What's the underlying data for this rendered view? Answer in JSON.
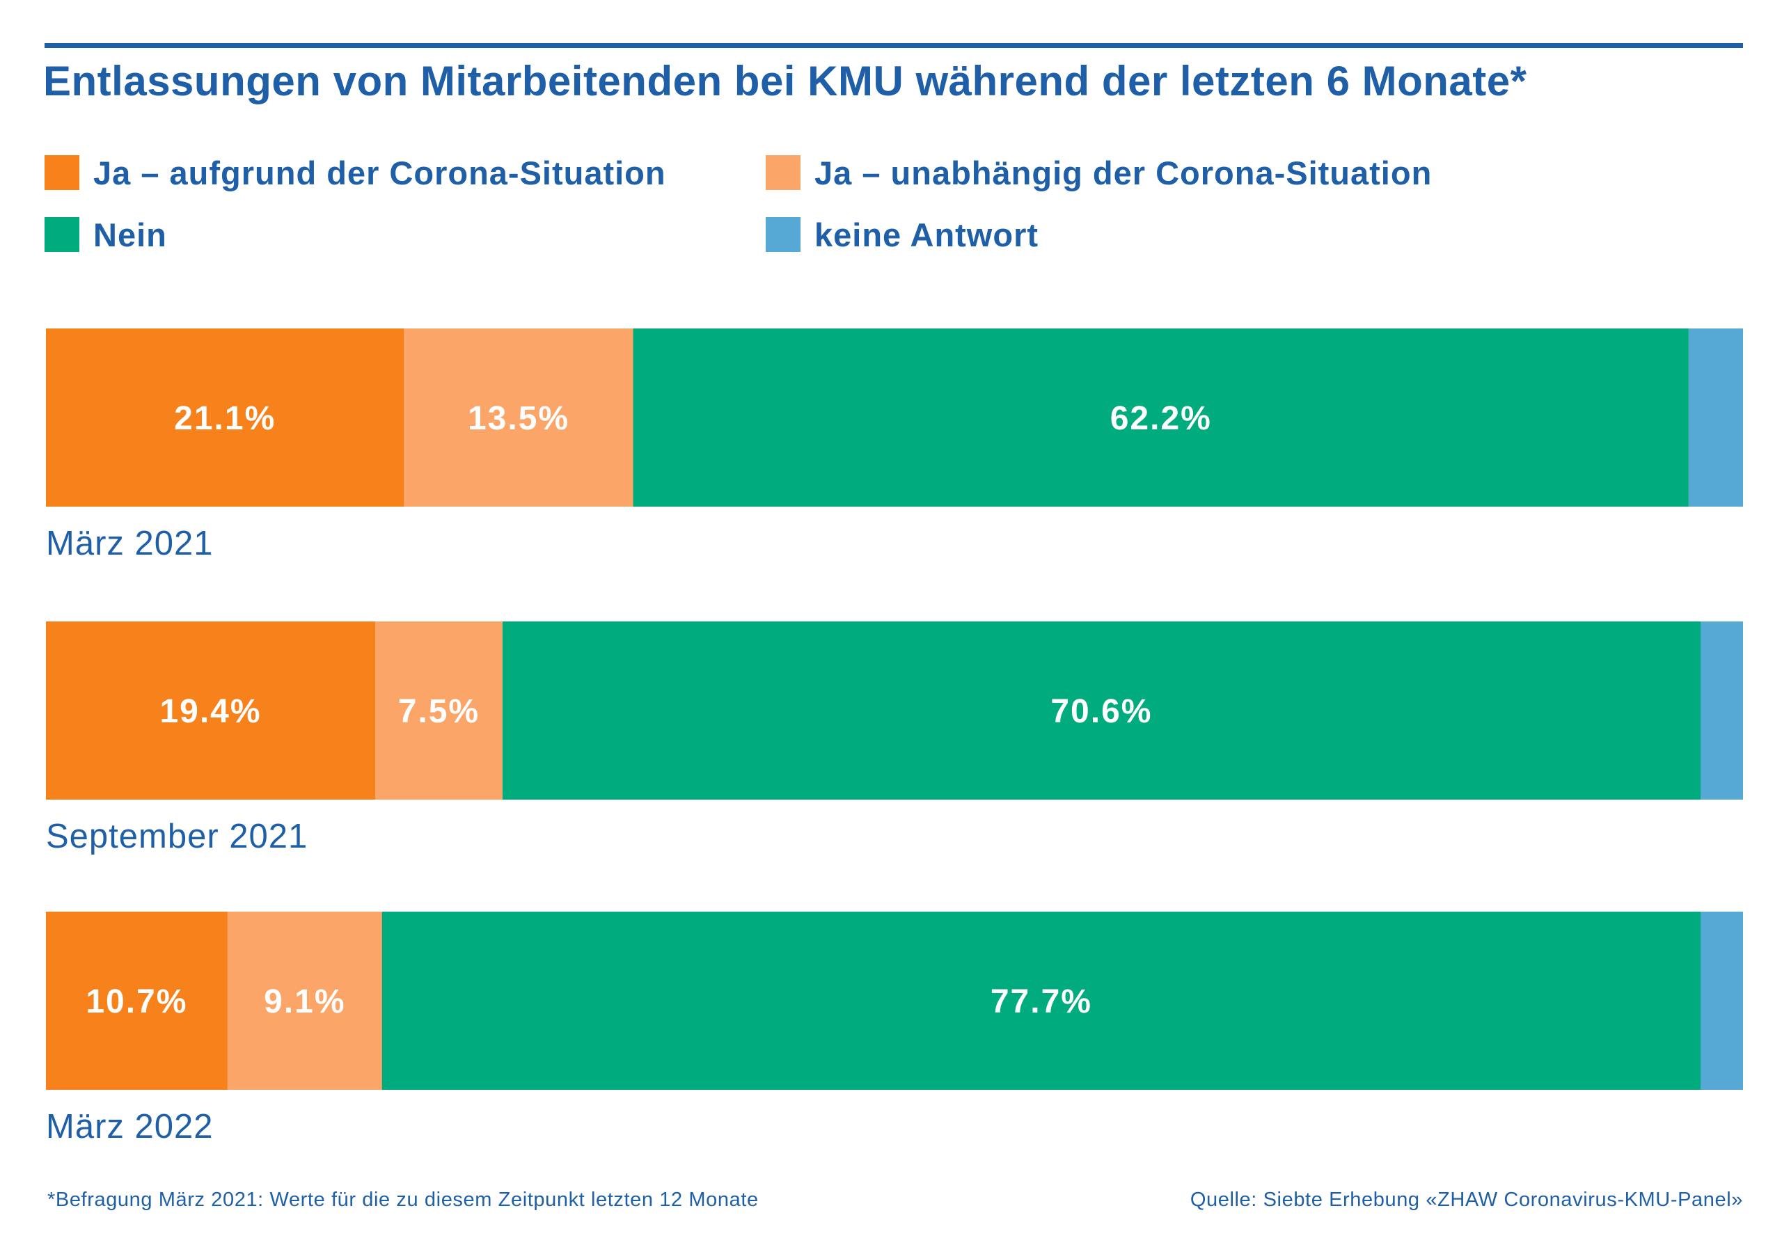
{
  "title": "Entlassungen von Mitarbeitenden bei KMU während der letzten 6 Monate*",
  "legend": [
    {
      "label": "Ja – aufgrund der Corona-Situation",
      "color": "#f7821b"
    },
    {
      "label": "Ja – unabhängig der Corona-Situation",
      "color": "#fba668"
    },
    {
      "label": "Nein",
      "color": "#00ac7d"
    },
    {
      "label": "keine Antwort",
      "color": "#56a9d4"
    }
  ],
  "footnote": "*Befragung März 2021: Werte für die zu diesem Zeitpunkt letzten 12 Monate",
  "source": "Quelle: Siebte Erhebung «ZHAW Coronavirus-KMU-Panel»",
  "chart_data": {
    "type": "bar",
    "orientation": "horizontal",
    "stacked": true,
    "categories": [
      "März 2021",
      "September 2021",
      "März 2022"
    ],
    "series": [
      {
        "name": "Ja – aufgrund der Corona-Situation",
        "values": [
          21.1,
          19.4,
          10.7
        ],
        "labels": [
          "21.1%",
          "19.4%",
          "10.7%"
        ],
        "color": "#f7821b"
      },
      {
        "name": "Ja – unabhängig der Corona-Situation",
        "values": [
          13.5,
          7.5,
          9.1
        ],
        "labels": [
          "13.5%",
          "7.5%",
          "9.1%"
        ],
        "color": "#fba668"
      },
      {
        "name": "Nein",
        "values": [
          62.2,
          70.6,
          77.7
        ],
        "labels": [
          "62.2%",
          "70.6%",
          "77.7%"
        ],
        "color": "#00ac7d"
      },
      {
        "name": "keine Antwort",
        "values": [
          3.2,
          2.5,
          2.5
        ],
        "labels": [
          "",
          "",
          ""
        ],
        "color": "#56a9d4"
      }
    ],
    "xlim": [
      0,
      100
    ],
    "grid": false,
    "legend_position": "top"
  }
}
